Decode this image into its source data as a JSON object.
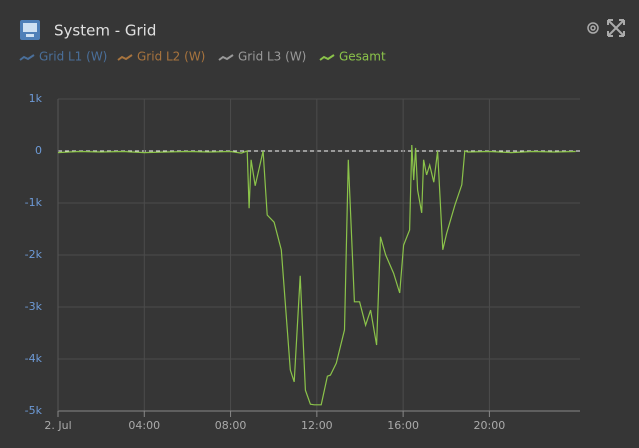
{
  "chart_data": {
    "type": "line",
    "title": "System - Grid",
    "x": [
      0,
      0.5,
      1,
      2,
      3,
      4,
      5,
      6,
      7,
      8,
      8.5,
      8.77,
      8.86,
      8.95,
      9.14,
      9.51,
      9.7,
      10.02,
      10.35,
      10.77,
      10.95,
      11.23,
      11.47,
      11.7,
      11.88,
      12.2,
      12.49,
      12.63,
      12.9,
      13.28,
      13.46,
      13.74,
      13.98,
      14.26,
      14.49,
      14.77,
      14.95,
      15.19,
      15.56,
      15.84,
      16.02,
      16.3,
      16.4,
      16.49,
      16.58,
      16.67,
      16.86,
      16.95,
      17.09,
      17.23,
      17.42,
      17.6,
      17.84,
      18.02,
      18.4,
      18.72,
      18.86,
      19,
      20,
      21,
      22,
      23,
      24
    ],
    "series": [
      {
        "name": "Grid L1 (W)",
        "color": "#4a6f9a",
        "hidden": true
      },
      {
        "name": "Grid L2 (W)",
        "color": "#a8743e",
        "hidden": true
      },
      {
        "name": "Grid L3 (W)",
        "color": "#9a9a9a",
        "hidden": true
      },
      {
        "name": "Gesamt",
        "color": "#8bc34a",
        "values": [
          -30,
          -20,
          -10,
          -20,
          -10,
          -30,
          -20,
          -10,
          -20,
          -10,
          -40,
          0,
          -1100,
          -170,
          -670,
          0,
          -1230,
          -1370,
          -1900,
          -4210,
          -4440,
          -2400,
          -4600,
          -4870,
          -4880,
          -4880,
          -4330,
          -4310,
          -4080,
          -3440,
          -170,
          -2900,
          -2900,
          -3350,
          -3060,
          -3730,
          -1650,
          -2000,
          -2350,
          -2730,
          -1810,
          -1520,
          115,
          -560,
          60,
          -750,
          -1190,
          -170,
          -460,
          -270,
          -600,
          0,
          -1900,
          -1580,
          -1040,
          -650,
          0,
          -20,
          -10,
          -30,
          -10,
          -20,
          -10
        ]
      }
    ],
    "xlim": [
      0,
      24.2
    ],
    "xticks": [
      {
        "value": 0,
        "label": "2. Jul"
      },
      {
        "value": 4,
        "label": "04:00"
      },
      {
        "value": 8,
        "label": "08:00"
      },
      {
        "value": 12,
        "label": "12:00"
      },
      {
        "value": 16,
        "label": "16:00"
      },
      {
        "value": 20,
        "label": "20:00"
      }
    ],
    "ylim": [
      -5000,
      1000
    ],
    "yticks": [
      {
        "value": 1000,
        "label": "1k"
      },
      0,
      {
        "value": -1000,
        "label": "-1k"
      },
      {
        "value": -2000,
        "label": "-2k"
      },
      {
        "value": -3000,
        "label": "-3k"
      },
      {
        "value": -4000,
        "label": "-4k"
      },
      {
        "value": -5000,
        "label": "-5k"
      }
    ],
    "grid": true,
    "zero_line": true
  }
}
